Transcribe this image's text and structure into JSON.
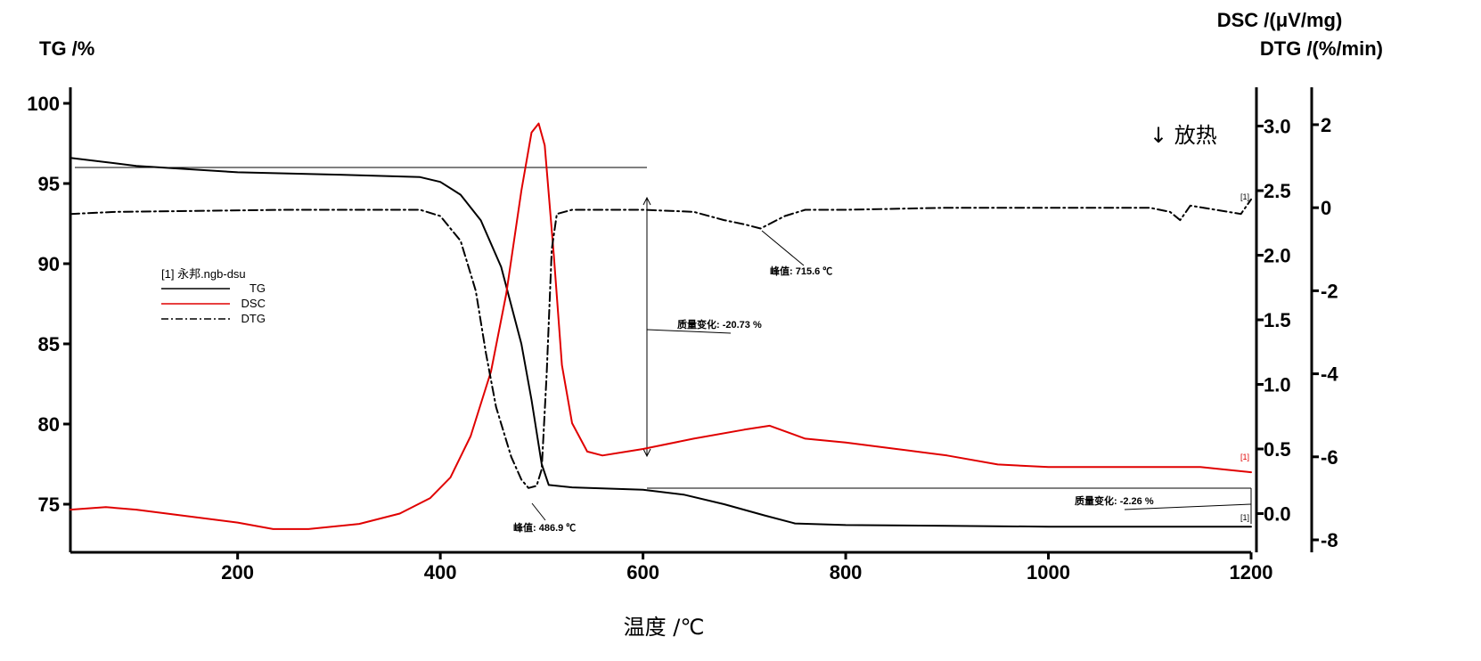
{
  "chart_data": {
    "type": "line",
    "title": "",
    "xlabel": "温度 /℃",
    "xlim": [
      35,
      1200
    ],
    "x_ticks": [
      "200",
      "400",
      "600",
      "800",
      "1000",
      "1200"
    ],
    "y_axes": {
      "tg": {
        "label": "TG /%",
        "range": [
          72,
          101
        ],
        "ticks": [
          "75",
          "80",
          "85",
          "90",
          "95",
          "100"
        ]
      },
      "dsc": {
        "label": "DSC /(μV/mg)",
        "range": [
          -0.3,
          3.3
        ],
        "ticks": [
          "0.0",
          "0.5",
          "1.0",
          "1.5",
          "2.0",
          "2.5",
          "3.0"
        ]
      },
      "dtg": {
        "label": "DTG /(%/min)",
        "range": [
          -8.3,
          2.9
        ],
        "ticks": [
          "-8",
          "-6",
          "-4",
          "-2",
          "0",
          "2"
        ]
      }
    },
    "legend": {
      "header": "[1] 永邦.ngb-dsu",
      "entries": [
        "TG",
        "DSC",
        "DTG"
      ]
    },
    "series": [
      {
        "name": "TG",
        "axis": "tg",
        "color": "#000000",
        "dash": "solid",
        "points": [
          [
            35,
            96.6
          ],
          [
            100,
            96.1
          ],
          [
            200,
            95.7
          ],
          [
            300,
            95.55
          ],
          [
            380,
            95.4
          ],
          [
            400,
            95.1
          ],
          [
            420,
            94.3
          ],
          [
            440,
            92.7
          ],
          [
            460,
            89.8
          ],
          [
            480,
            85.0
          ],
          [
            490,
            81.5
          ],
          [
            500,
            77.5
          ],
          [
            507,
            76.2
          ],
          [
            530,
            76.05
          ],
          [
            600,
            75.9
          ],
          [
            640,
            75.6
          ],
          [
            680,
            75.0
          ],
          [
            720,
            74.3
          ],
          [
            750,
            73.8
          ],
          [
            800,
            73.7
          ],
          [
            900,
            73.65
          ],
          [
            1000,
            73.6
          ],
          [
            1200,
            73.6
          ]
        ]
      },
      {
        "name": "DSC",
        "axis": "dsc",
        "color": "#e00000",
        "dash": "solid",
        "points": [
          [
            35,
            0.03
          ],
          [
            70,
            0.05
          ],
          [
            100,
            0.03
          ],
          [
            150,
            -0.02
          ],
          [
            200,
            -0.07
          ],
          [
            235,
            -0.12
          ],
          [
            270,
            -0.12
          ],
          [
            320,
            -0.08
          ],
          [
            360,
            0.0
          ],
          [
            390,
            0.12
          ],
          [
            410,
            0.28
          ],
          [
            430,
            0.6
          ],
          [
            450,
            1.1
          ],
          [
            465,
            1.7
          ],
          [
            480,
            2.5
          ],
          [
            490,
            2.95
          ],
          [
            497,
            3.02
          ],
          [
            503,
            2.85
          ],
          [
            512,
            2.0
          ],
          [
            520,
            1.15
          ],
          [
            530,
            0.7
          ],
          [
            545,
            0.48
          ],
          [
            560,
            0.45
          ],
          [
            600,
            0.5
          ],
          [
            650,
            0.58
          ],
          [
            700,
            0.65
          ],
          [
            725,
            0.68
          ],
          [
            760,
            0.58
          ],
          [
            800,
            0.55
          ],
          [
            850,
            0.5
          ],
          [
            900,
            0.45
          ],
          [
            950,
            0.38
          ],
          [
            1000,
            0.36
          ],
          [
            1100,
            0.36
          ],
          [
            1150,
            0.36
          ],
          [
            1200,
            0.32
          ]
        ]
      },
      {
        "name": "DTG",
        "axis": "dtg",
        "color": "#000000",
        "dash": "dashdot",
        "points": [
          [
            35,
            -0.15
          ],
          [
            80,
            -0.1
          ],
          [
            150,
            -0.08
          ],
          [
            250,
            -0.05
          ],
          [
            330,
            -0.05
          ],
          [
            380,
            -0.05
          ],
          [
            400,
            -0.2
          ],
          [
            420,
            -0.8
          ],
          [
            435,
            -2.0
          ],
          [
            445,
            -3.5
          ],
          [
            455,
            -4.8
          ],
          [
            470,
            -6.0
          ],
          [
            480,
            -6.55
          ],
          [
            487,
            -6.75
          ],
          [
            495,
            -6.7
          ],
          [
            500,
            -6.3
          ],
          [
            505,
            -4.0
          ],
          [
            510,
            -1.0
          ],
          [
            515,
            -0.15
          ],
          [
            530,
            -0.05
          ],
          [
            600,
            -0.05
          ],
          [
            650,
            -0.1
          ],
          [
            680,
            -0.3
          ],
          [
            700,
            -0.4
          ],
          [
            716,
            -0.5
          ],
          [
            740,
            -0.2
          ],
          [
            760,
            -0.05
          ],
          [
            800,
            -0.05
          ],
          [
            900,
            0.0
          ],
          [
            1000,
            0.0
          ],
          [
            1100,
            0.0
          ],
          [
            1120,
            -0.1
          ],
          [
            1130,
            -0.3
          ],
          [
            1140,
            0.05
          ],
          [
            1190,
            -0.15
          ],
          [
            1200,
            0.2
          ]
        ]
      }
    ],
    "annotations": {
      "peak_dtg_main": "峰值: 486.9 ℃",
      "peak_dtg_second": "峰值: 715.6 ℃",
      "mass_change_1": "质量变化: -20.73 %",
      "mass_change_2": "质量变化: -2.26 %",
      "exo_marker": "↓ 放热",
      "curve_marker": "[1]"
    }
  }
}
